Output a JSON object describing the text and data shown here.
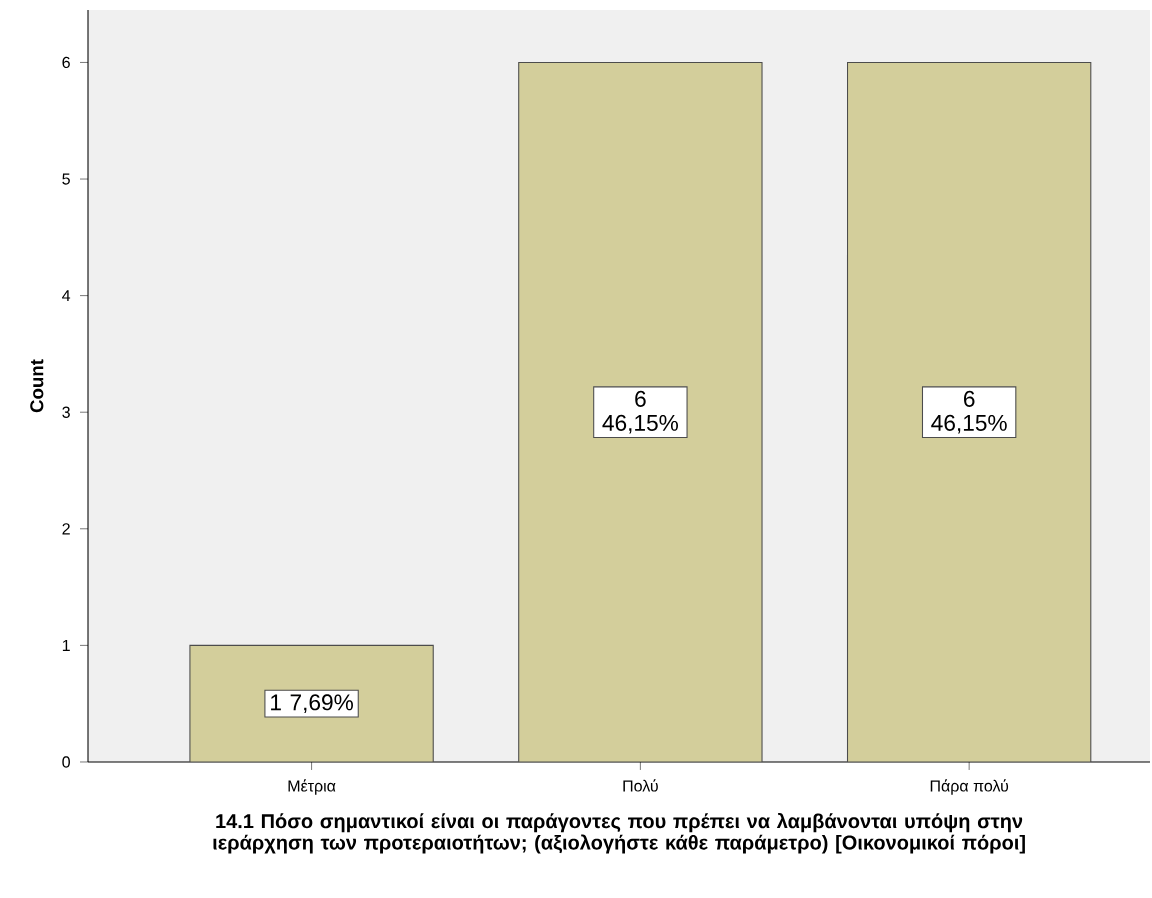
{
  "chart_data": {
    "type": "bar",
    "xlabel": "14.1 Πόσο σημαντικοί είναι οι παράγοντες που πρέπει να λαμβάνονται υπόψη στην ιεράρχηση των προτεραιοτήτων; (αξιολογήστε κάθε παράμετρο) [Οικονομικοί πόροι]",
    "ylabel": "Count",
    "categories": [
      "Μέτρια",
      "Πολύ",
      "Πάρα πολύ"
    ],
    "values": [
      1,
      6,
      6
    ],
    "value_labels": [
      "1 7,69%",
      "6 46,15%",
      "6 46,15%"
    ],
    "color": "#d3ce9b",
    "ylim": [
      0,
      6.45
    ],
    "yticks": [
      0,
      1,
      2,
      3,
      4,
      5,
      6
    ]
  }
}
